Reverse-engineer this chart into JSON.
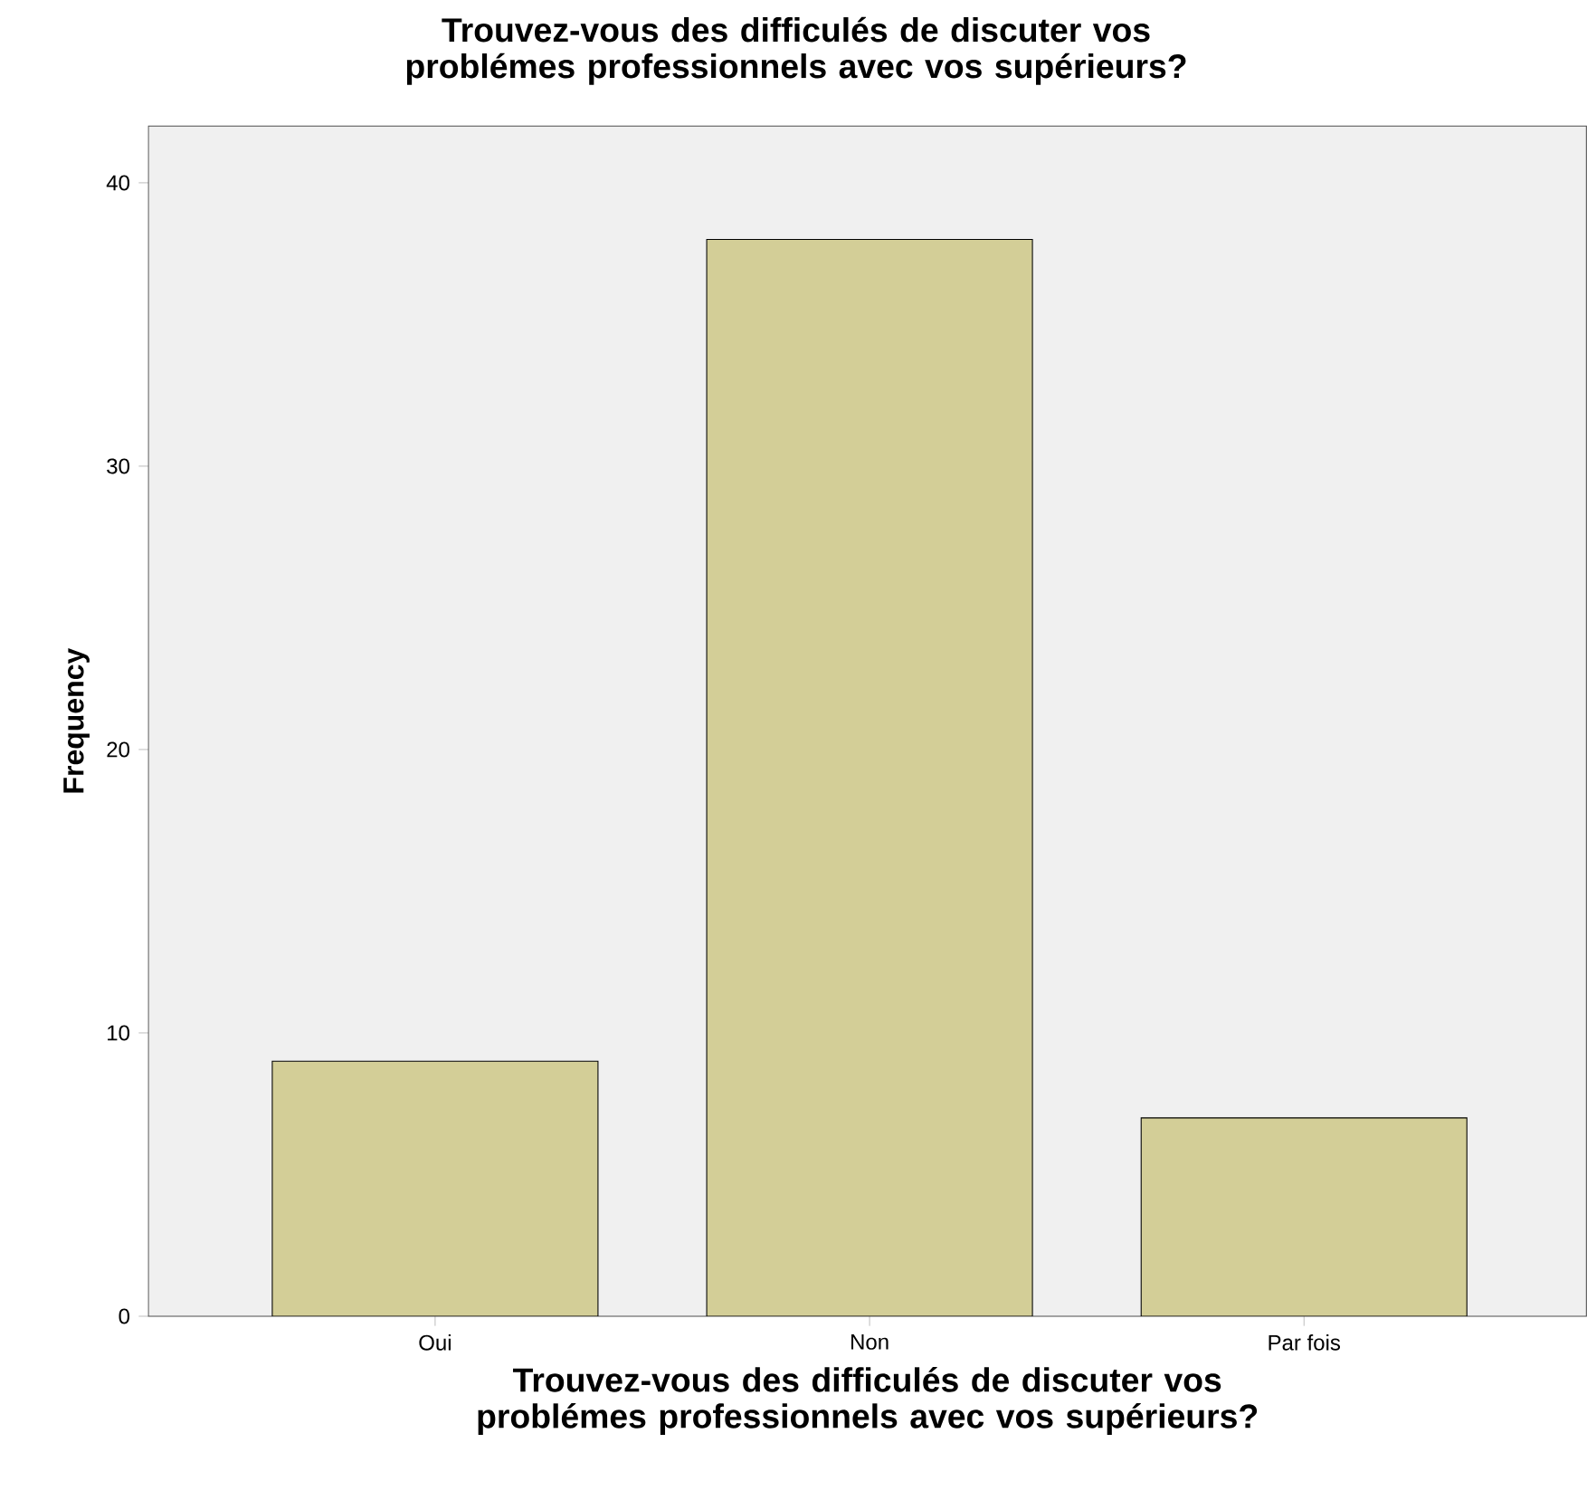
{
  "chart_data": {
    "type": "bar",
    "title": "Trouvez-vous des difficulés de discuter vos problémes professionnels avec vos supérieurs?",
    "xlabel": "Trouvez-vous des difficulés de discuter vos problémes professionnels avec vos supérieurs?",
    "ylabel": "Frequency",
    "categories": [
      "Oui",
      "Non",
      "Par fois"
    ],
    "values": [
      9,
      38,
      7
    ],
    "color": "#d3ce97",
    "ylim": [
      0,
      42
    ],
    "yticks": [
      0,
      10,
      20,
      30,
      40
    ]
  }
}
